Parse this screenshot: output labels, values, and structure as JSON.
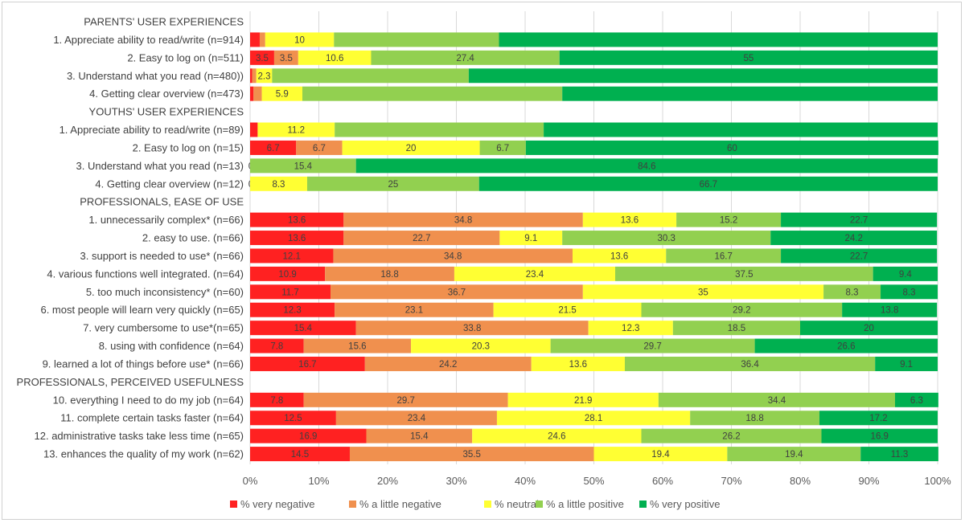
{
  "chart_data": {
    "type": "bar",
    "orientation": "horizontal-stacked-100",
    "xlim": [
      0,
      100
    ],
    "x_ticks": [
      "0%",
      "10%",
      "20%",
      "30%",
      "40%",
      "50%",
      "60%",
      "70%",
      "80%",
      "90%",
      "100%"
    ],
    "grid": true,
    "legend_position": "bottom",
    "series": [
      {
        "name": "% very negative",
        "color": "#ff2121"
      },
      {
        "name": "% a little negative",
        "color": "#f0904e"
      },
      {
        "name": "% neutral",
        "color": "#ffff33"
      },
      {
        "name": "% a little positive",
        "color": "#92d050"
      },
      {
        "name": "% very positive",
        "color": "#00b050"
      }
    ],
    "rows": [
      {
        "label": "PARENTS' USER EXPERIENCES",
        "header": true
      },
      {
        "label": "1. Appreciate ability to read/write (n=914)",
        "values": [
          1.4,
          0.8,
          10,
          24.0,
          63.8
        ],
        "labels": [
          null,
          null,
          "10",
          null,
          null
        ]
      },
      {
        "label": "2. Easy to log on  (n=511)",
        "values": [
          3.5,
          3.5,
          10.6,
          27.4,
          55
        ],
        "labels": [
          "3.5",
          "3.5",
          "10.6",
          "27.4",
          "55"
        ]
      },
      {
        "label": "3. Understand what you read (n=480))",
        "values": [
          0.3,
          0.6,
          2.3,
          28.6,
          68.2
        ],
        "labels": [
          null,
          null,
          "2.3",
          null,
          null
        ]
      },
      {
        "label": "4. Getting clear overview (n=473)",
        "values": [
          0.5,
          1.2,
          5.9,
          37.8,
          54.6
        ],
        "labels": [
          null,
          null,
          "5.9",
          null,
          null
        ]
      },
      {
        "label": "YOUTHS' USER EXPERIENCES",
        "header": true
      },
      {
        "label": "1. Appreciate ability to read/write (n=89)",
        "values": [
          1.1,
          0,
          11.2,
          30.4,
          57.3
        ],
        "labels": [
          null,
          null,
          "11.2",
          null,
          null
        ]
      },
      {
        "label": "2.  Easy to log on (n=15)",
        "values": [
          6.7,
          6.7,
          20,
          6.7,
          60
        ],
        "labels": [
          "6.7",
          "6.7",
          "20",
          "6.7",
          "60"
        ]
      },
      {
        "label": "3.  Understand what you read (n=13)",
        "values": [
          0,
          0,
          0,
          15.4,
          84.6
        ],
        "labels": [
          "0",
          null,
          null,
          "15.4",
          "84.6"
        ]
      },
      {
        "label": "4. Getting clear overview (n=12)",
        "values": [
          0,
          0,
          8.3,
          25,
          66.7
        ],
        "labels": [
          "0",
          null,
          "8.3",
          "25",
          "66.7"
        ]
      },
      {
        "label": "PROFESSIONALS, EASE OF USE",
        "header": true
      },
      {
        "label": "1. unnecessarily complex* (n=66)",
        "values": [
          13.6,
          34.8,
          13.6,
          15.2,
          22.7
        ],
        "labels": [
          "13.6",
          "34.8",
          "13.6",
          "15.2",
          "22.7"
        ]
      },
      {
        "label": "2. easy to use. (n=66)",
        "values": [
          13.6,
          22.7,
          9.1,
          30.3,
          24.2
        ],
        "labels": [
          "13.6",
          "22.7",
          "9.1",
          "30.3",
          "24.2"
        ]
      },
      {
        "label": "3. support  is needed to use* (n=66)",
        "values": [
          12.1,
          34.8,
          13.6,
          16.7,
          22.7
        ],
        "labels": [
          "12.1",
          "34.8",
          "13.6",
          "16.7",
          "22.7"
        ]
      },
      {
        "label": "4. various functions well integrated. (n=64)",
        "values": [
          10.9,
          18.8,
          23.4,
          37.5,
          9.4
        ],
        "labels": [
          "10.9",
          "18.8",
          "23.4",
          "37.5",
          "9.4"
        ]
      },
      {
        "label": "5. too much inconsistency* (n=60)",
        "values": [
          11.7,
          36.7,
          35,
          8.3,
          8.3
        ],
        "labels": [
          "11.7",
          "36.7",
          "35",
          "8.3",
          "8.3"
        ]
      },
      {
        "label": "6. most people will learn very quickly (n=65)",
        "values": [
          12.3,
          23.1,
          21.5,
          29.2,
          13.8
        ],
        "labels": [
          "12.3",
          "23.1",
          "21.5",
          "29.2",
          "13.8"
        ]
      },
      {
        "label": "7. very cumbersome to use*(n=65)",
        "values": [
          15.4,
          33.8,
          12.3,
          18.5,
          20
        ],
        "labels": [
          "15.4",
          "33.8",
          "12.3",
          "18.5",
          "20"
        ]
      },
      {
        "label": "8. using with confidence  (n=64)",
        "values": [
          7.8,
          15.6,
          20.3,
          29.7,
          26.6
        ],
        "labels": [
          "7.8",
          "15.6",
          "20.3",
          "29.7",
          "26.6"
        ]
      },
      {
        "label": "9. learned a lot of things before use* (n=66)",
        "values": [
          16.7,
          24.2,
          13.6,
          36.4,
          9.1
        ],
        "labels": [
          "16.7",
          "24.2",
          "13.6",
          "36.4",
          "9.1"
        ]
      },
      {
        "label": "PROFESSIONALS, PERCEIVED USEFULNESS",
        "header": true
      },
      {
        "label": "10. everything I need to do my job (n=64)",
        "values": [
          7.8,
          29.7,
          21.9,
          34.4,
          6.3
        ],
        "labels": [
          "7.8",
          "29.7",
          "21.9",
          "34.4",
          "6.3"
        ]
      },
      {
        "label": "11. complete certain tasks faster (n=64)",
        "values": [
          12.5,
          23.4,
          28.1,
          18.8,
          17.2
        ],
        "labels": [
          "12.5",
          "23.4",
          "28.1",
          "18.8",
          "17.2"
        ]
      },
      {
        "label": "12. administrative tasks take less time (n=65)",
        "values": [
          16.9,
          15.4,
          24.6,
          26.2,
          16.9
        ],
        "labels": [
          "16.9",
          "15.4",
          "24.6",
          "26.2",
          "16.9"
        ]
      },
      {
        "label": "13. enhances the quality of my work (n=62)",
        "values": [
          14.5,
          35.5,
          19.4,
          19.4,
          11.3
        ],
        "labels": [
          "14.5",
          "35.5",
          "19.4",
          "19.4",
          "11.3"
        ]
      }
    ]
  }
}
